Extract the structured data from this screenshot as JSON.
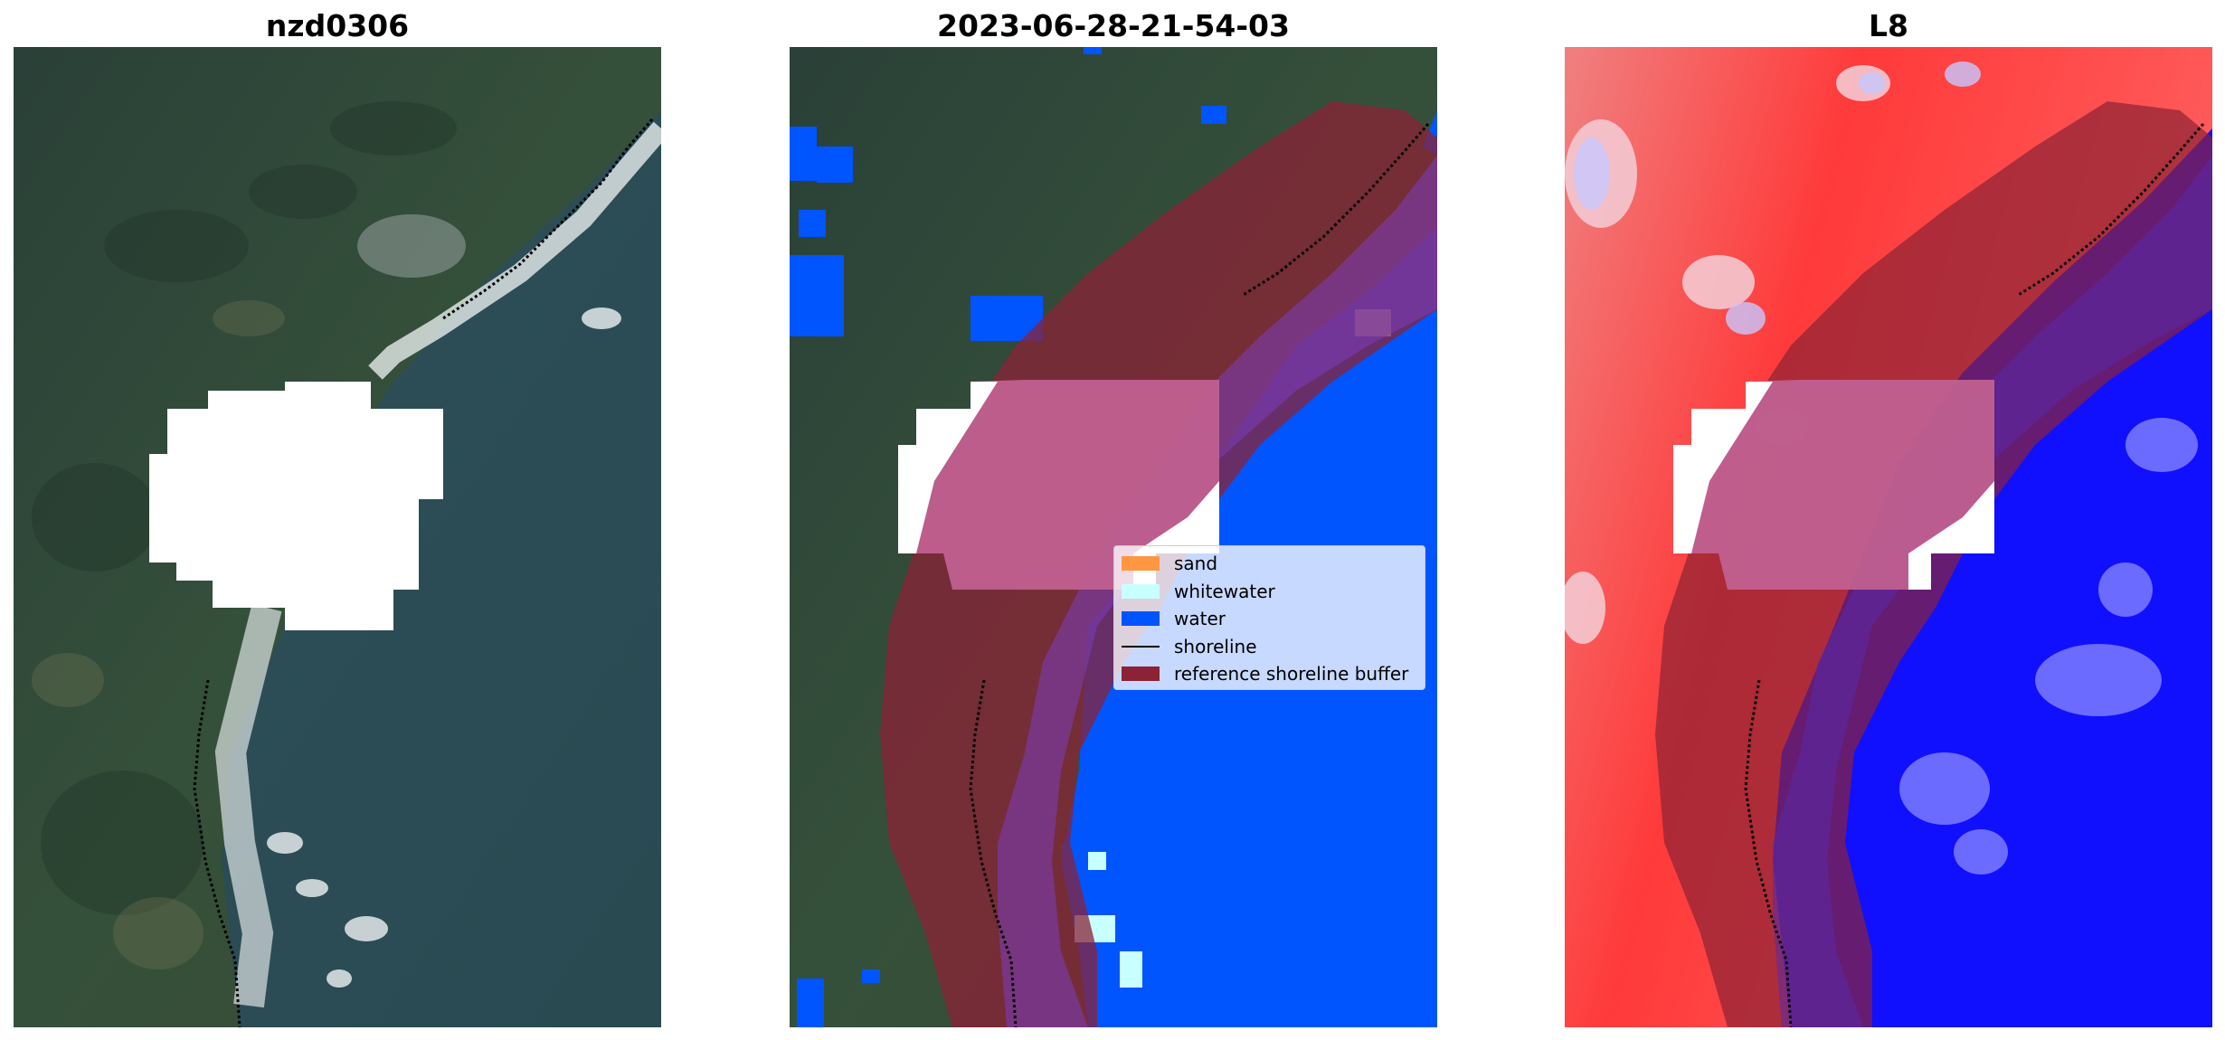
{
  "panels": [
    {
      "title": "nzd0306",
      "content": "rgb-satellite-image"
    },
    {
      "title": "2023-06-28-21-54-03",
      "content": "classified-image-with-shoreline-buffer"
    },
    {
      "title": "L8",
      "content": "index-image-with-shoreline-buffer"
    }
  ],
  "legend": {
    "placement": "center-right of middle panel",
    "items": [
      {
        "label": "sand",
        "color": "#ff9642",
        "kind": "patch"
      },
      {
        "label": "whitewater",
        "color": "#c8ffff",
        "kind": "patch"
      },
      {
        "label": "water",
        "color": "#0055ff",
        "kind": "patch"
      },
      {
        "label": "shoreline",
        "color": "#000000",
        "kind": "line"
      },
      {
        "label": "reference shoreline buffer",
        "color": "#8b2235",
        "kind": "patch"
      }
    ]
  },
  "colors": {
    "land": "#2e4432",
    "sea": "#2c4c56",
    "water_class": "#0055ff",
    "whitewater": "#c8ffff",
    "buffer": "#8b2235",
    "index_positive": "#ff2020",
    "index_negative": "#0000ff"
  }
}
